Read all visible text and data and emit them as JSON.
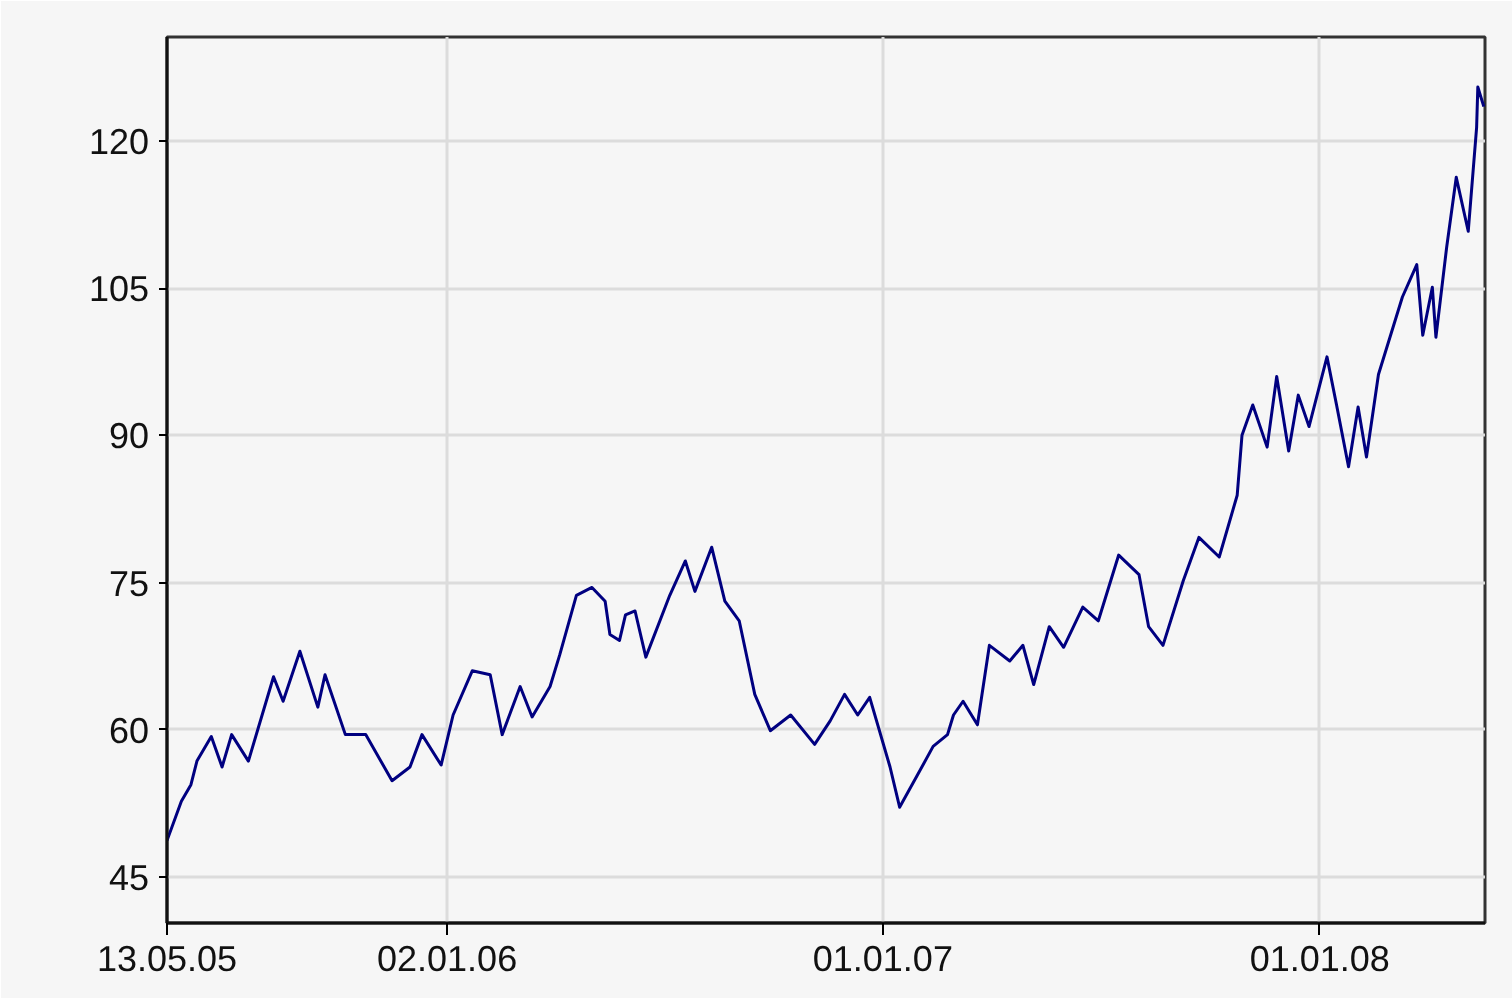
{
  "chart_data": {
    "type": "line",
    "x": [
      "2005-05-13",
      "2005-05-25",
      "2005-06-02",
      "2005-06-07",
      "2005-06-19",
      "2005-06-28",
      "2005-07-06",
      "2005-07-20",
      "2005-08-10",
      "2005-08-18",
      "2005-09-01",
      "2005-09-16",
      "2005-09-22",
      "2005-10-09",
      "2005-10-26",
      "2005-11-17",
      "2005-12-02",
      "2005-12-12",
      "2005-12-28",
      "2006-01-07",
      "2006-01-23",
      "2006-02-07",
      "2006-02-17",
      "2006-03-04",
      "2006-03-14",
      "2006-03-29",
      "2006-04-06",
      "2006-04-20",
      "2006-05-03",
      "2006-05-14",
      "2006-05-18",
      "2006-05-26",
      "2006-05-31",
      "2006-06-08",
      "2006-06-17",
      "2006-07-07",
      "2006-07-20",
      "2006-07-28",
      "2006-08-11",
      "2006-08-22",
      "2006-09-03",
      "2006-09-16",
      "2006-09-29",
      "2006-10-16",
      "2006-11-05",
      "2006-11-18",
      "2006-11-30",
      "2006-12-11",
      "2006-12-21",
      "2007-01-07",
      "2007-01-15",
      "2007-01-30",
      "2007-02-12",
      "2007-02-24",
      "2007-03-01",
      "2007-03-09",
      "2007-03-21",
      "2007-03-31",
      "2007-04-17",
      "2007-04-28",
      "2007-05-07",
      "2007-05-20",
      "2007-06-01",
      "2007-06-17",
      "2007-06-30",
      "2007-07-17",
      "2007-08-03",
      "2007-08-11",
      "2007-08-23",
      "2007-09-09",
      "2007-09-22",
      "2007-10-09",
      "2007-10-24",
      "2007-10-28",
      "2007-11-06",
      "2007-11-18",
      "2007-11-26",
      "2007-12-06",
      "2007-12-14",
      "2007-12-23",
      "2008-01-07",
      "2008-01-15",
      "2008-01-25",
      "2008-02-02",
      "2008-02-09",
      "2008-02-19",
      "2008-03-10",
      "2008-03-22",
      "2008-03-27",
      "2008-04-04",
      "2008-04-07",
      "2008-04-16",
      "2008-04-24",
      "2008-05-04",
      "2008-05-11",
      "2008-05-12",
      "2008-05-17"
    ],
    "series": [
      {
        "color": "#000080",
        "values": [
          48.7,
          52.7,
          54.4,
          56.8,
          59.3,
          56.2,
          59.5,
          56.8,
          65.4,
          62.9,
          68.0,
          62.3,
          65.6,
          59.5,
          59.5,
          54.8,
          56.2,
          59.5,
          56.4,
          61.5,
          66.0,
          65.6,
          59.5,
          64.4,
          61.3,
          64.4,
          67.6,
          73.7,
          74.5,
          73.1,
          69.7,
          69.1,
          71.7,
          72.1,
          67.4,
          73.7,
          77.2,
          74.1,
          78.6,
          73.1,
          71.1,
          63.6,
          59.9,
          61.5,
          58.5,
          60.9,
          63.6,
          61.5,
          63.3,
          56.2,
          52.1,
          55.4,
          58.3,
          59.5,
          61.5,
          62.9,
          60.5,
          68.6,
          67.0,
          68.6,
          64.6,
          70.5,
          68.4,
          72.5,
          71.1,
          77.8,
          75.8,
          70.5,
          68.6,
          75.2,
          79.6,
          77.6,
          83.9,
          90.0,
          93.1,
          88.8,
          96.0,
          88.4,
          94.1,
          90.9,
          98.0,
          93.1,
          86.8,
          92.9,
          87.8,
          96.2,
          104.1,
          107.4,
          100.2,
          105.1,
          100.0,
          109.2,
          116.3,
          110.8,
          121.4,
          125.5,
          123.5
        ]
      }
    ],
    "xlim": [
      "2005-05-13",
      "2008-05-18"
    ],
    "xticks": [
      {
        "value": "2005-05-13",
        "label": "13.05.05"
      },
      {
        "value": "2006-01-02",
        "label": "02.01.06"
      },
      {
        "value": "2007-01-01",
        "label": "01.01.07"
      },
      {
        "value": "2008-01-01",
        "label": "01.01.08"
      }
    ],
    "ylim": [
      40.3,
      130.6
    ],
    "yticks": [
      45,
      60,
      75,
      90,
      105,
      120
    ],
    "grid": true,
    "line_style": "solid"
  }
}
